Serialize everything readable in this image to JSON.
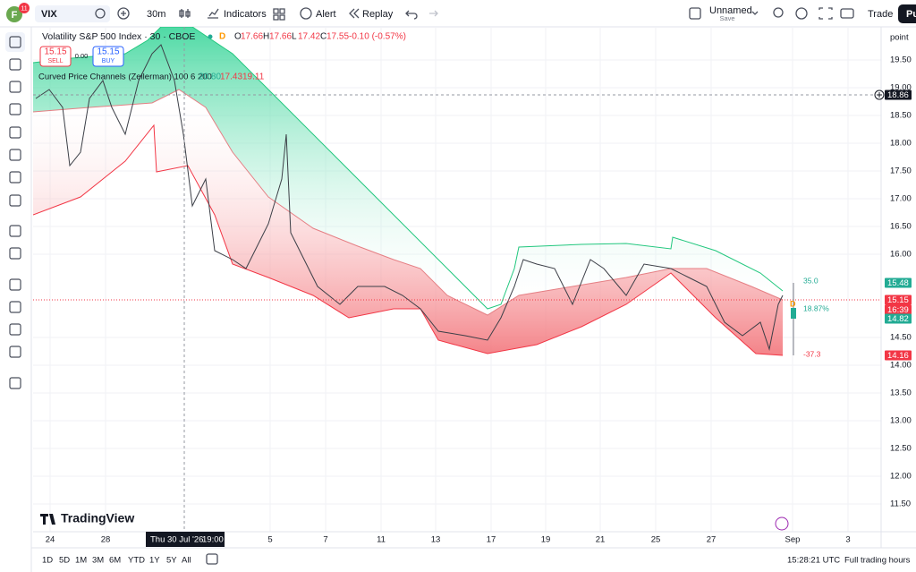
{
  "toolbar": {
    "avatar": "F",
    "badge": "11",
    "symbol": "VIX",
    "interval": "30m",
    "indicators": "Indicators",
    "alert": "Alert",
    "replay": "Replay",
    "layout_name": "Unnamed",
    "save": "Save",
    "trade": "Trade",
    "publish": "Pu"
  },
  "legend": {
    "title": "Volatility S&P 500 Index · 30 · CBOE",
    "flag": "D",
    "ohlc": [
      [
        "O",
        "17.66"
      ],
      [
        "H",
        "17.66"
      ],
      [
        "L",
        "17.42"
      ],
      [
        "C",
        "17.55"
      ]
    ],
    "change": "-0.10 (-0.57%)"
  },
  "trade_buttons": {
    "sell_price": "15.15",
    "sell": "SELL",
    "spread": "0.00",
    "buy_price": "15.15",
    "buy": "BUY"
  },
  "indicator": {
    "name": "Curved Price Channels (Zeilerman) 100 6 200",
    "values": [
      "20.80",
      "17.43",
      "19.11"
    ]
  },
  "price_axis": {
    "unit": "point",
    "labels": [
      "19.50",
      "19.00",
      "18.50",
      "18.00",
      "17.50",
      "17.00",
      "16.50",
      "16.00",
      "14.50",
      "14.00",
      "13.50",
      "13.00",
      "12.50",
      "12.00",
      "11.50"
    ],
    "markers": [
      "18.86",
      "15.48",
      "15.15",
      "16:39",
      "14.82",
      "14.16"
    ]
  },
  "time_axis": {
    "labels": [
      "24",
      "28",
      "5",
      "7",
      "11",
      "13",
      "17",
      "19",
      "21",
      "25",
      "27",
      "Sep",
      "3"
    ],
    "crosshair_date": "Thu 30 Jul '26",
    "crosshair_time": "19:00"
  },
  "annotations": [
    "35.0",
    "18.87%",
    "-37.3"
  ],
  "logo": "TradingView",
  "bottom_bar": {
    "ranges": [
      "1D",
      "5D",
      "1M",
      "3M",
      "6M",
      "YTD",
      "1Y",
      "5Y",
      "All"
    ],
    "clock": "15:28:21 UTC",
    "session": "Full trading hours"
  }
}
